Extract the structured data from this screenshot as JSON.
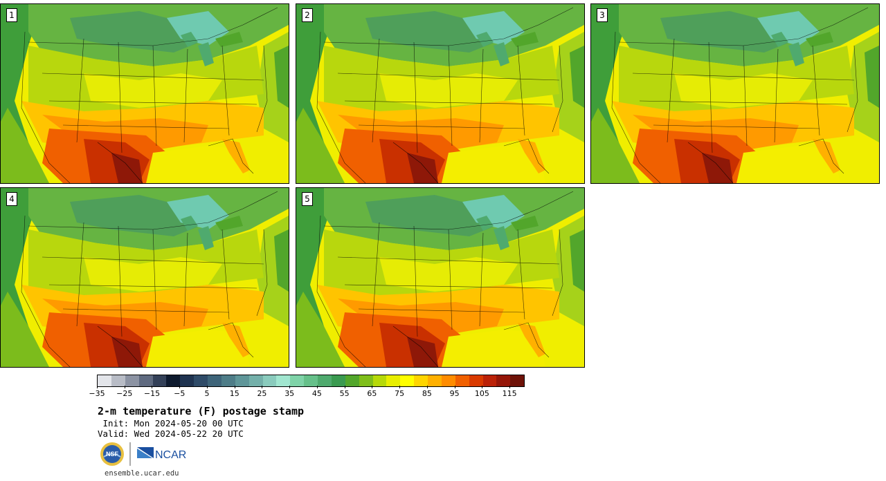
{
  "panels": [
    {
      "label": "1"
    },
    {
      "label": "2"
    },
    {
      "label": "3"
    },
    {
      "label": "4"
    },
    {
      "label": "5"
    }
  ],
  "colorbar": {
    "colors": [
      "#e3e5ea",
      "#b8bcc6",
      "#8c93a3",
      "#5f6a80",
      "#334058",
      "#0e1a2e",
      "#1f3350",
      "#2f4b68",
      "#3e6479",
      "#4e7d88",
      "#5f9699",
      "#74b0aa",
      "#8acbbd",
      "#a1e6d0",
      "#7fd3a8",
      "#66c08a",
      "#4faa6e",
      "#3a9a50",
      "#52a62b",
      "#7fbe1a",
      "#b6d909",
      "#e8ee00",
      "#ffff00",
      "#ffd500",
      "#ffb000",
      "#ff8c00",
      "#f06000",
      "#d93a00",
      "#bb2208",
      "#951608",
      "#6e1208"
    ],
    "tick_labels": [
      "−35",
      "−25",
      "−15",
      "−5",
      "5",
      "15",
      "25",
      "35",
      "45",
      "55",
      "65",
      "75",
      "85",
      "95",
      "105",
      "115"
    ]
  },
  "title": "2-m temperature (F) postage stamp",
  "init": " Init: Mon 2024-05-20 00 UTC",
  "valid": "Valid: Wed 2024-05-22 20 UTC",
  "logos": {
    "nsf_text": "NSF",
    "ncar_text": "NCAR"
  },
  "website": "ensemble.ucar.edu"
}
